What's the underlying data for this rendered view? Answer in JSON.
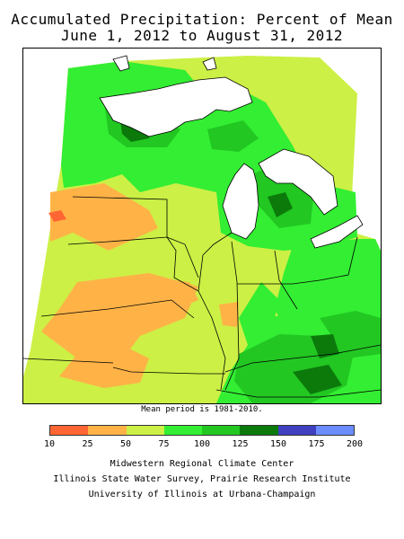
{
  "title": {
    "line1": "Accumulated Precipitation: Percent of Mean",
    "line2": "June 1, 2012 to August 31, 2012"
  },
  "note": "Mean period is 1981-2010.",
  "legend": {
    "bins": [
      {
        "from": 10,
        "to": 25,
        "color": "#ff6633"
      },
      {
        "from": 25,
        "to": 50,
        "color": "#ffb347"
      },
      {
        "from": 50,
        "to": 75,
        "color": "#ccf045"
      },
      {
        "from": 75,
        "to": 100,
        "color": "#33ee33"
      },
      {
        "from": 100,
        "to": 125,
        "color": "#22c722"
      },
      {
        "from": 125,
        "to": 150,
        "color": "#0b7a0b"
      },
      {
        "from": 150,
        "to": 175,
        "color": "#4040c0"
      },
      {
        "from": 175,
        "to": 200,
        "color": "#6a8cff"
      }
    ],
    "ticks": [
      "10",
      "25",
      "50",
      "75",
      "100",
      "125",
      "150",
      "175",
      "200"
    ]
  },
  "credits": [
    "Midwestern Regional Climate Center",
    "Illinois State Water Survey, Prairie Research Institute",
    "University of Illinois at Urbana-Champaign"
  ]
}
